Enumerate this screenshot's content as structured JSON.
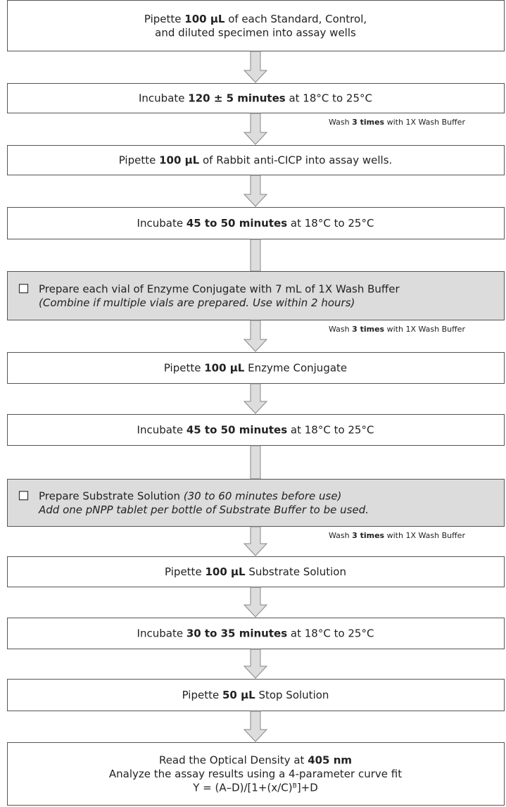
{
  "steps": [
    {
      "lines": [
        [
          {
            "text": "Pipette "
          },
          {
            "text": "100 µL",
            "bold": true
          },
          {
            "text": " of each Standard, Control,"
          }
        ],
        [
          {
            "text": "and diluted specimen into assay wells"
          }
        ]
      ]
    },
    {
      "lines": [
        [
          {
            "text": "Incubate "
          },
          {
            "text": "120 ± 5 minutes",
            "bold": true
          },
          {
            "text": " at 18°C to 25°C"
          }
        ]
      ],
      "wash_note": [
        {
          "text": "Wash "
        },
        {
          "text": "3 times",
          "bold": true
        },
        {
          "text": " with 1X Wash Buffer"
        }
      ]
    },
    {
      "lines": [
        [
          {
            "text": "Pipette "
          },
          {
            "text": "100 µL",
            "bold": true
          },
          {
            "text": " of Rabbit anti-CICP into assay wells."
          }
        ]
      ]
    },
    {
      "lines": [
        [
          {
            "text": "Incubate "
          },
          {
            "text": "45 to 50 minutes",
            "bold": true
          },
          {
            "text": " at 18°C to 25°C"
          }
        ]
      ]
    },
    {
      "shaded": true,
      "checkbox": true,
      "lines": [
        [
          {
            "text": "Prepare each vial of Enzyme Conjugate with 7 mL of 1X Wash Buffer"
          }
        ],
        [
          {
            "text": "(Combine if multiple vials are prepared. Use within 2 hours)",
            "italic": true
          }
        ]
      ],
      "wash_note": [
        {
          "text": "Wash "
        },
        {
          "text": "3 times",
          "bold": true
        },
        {
          "text": " with 1X Wash Buffer"
        }
      ]
    },
    {
      "lines": [
        [
          {
            "text": "Pipette "
          },
          {
            "text": "100 µL",
            "bold": true
          },
          {
            "text": " Enzyme Conjugate"
          }
        ]
      ]
    },
    {
      "lines": [
        [
          {
            "text": "Incubate "
          },
          {
            "text": "45 to 50 minutes",
            "bold": true
          },
          {
            "text": " at 18°C to 25°C"
          }
        ]
      ]
    },
    {
      "shaded": true,
      "checkbox": true,
      "lines": [
        [
          {
            "text": "Prepare Substrate Solution "
          },
          {
            "text": "(30 to 60 minutes before use)",
            "italic": true
          }
        ],
        [
          {
            "text": "Add one pNPP tablet per bottle of Substrate Buffer to be used.",
            "italic": true
          }
        ]
      ],
      "wash_note": [
        {
          "text": "Wash "
        },
        {
          "text": "3 times",
          "bold": true
        },
        {
          "text": " with 1X Wash Buffer"
        }
      ]
    },
    {
      "lines": [
        [
          {
            "text": "Pipette "
          },
          {
            "text": "100 µL",
            "bold": true
          },
          {
            "text": " Substrate Solution"
          }
        ]
      ]
    },
    {
      "lines": [
        [
          {
            "text": "Incubate "
          },
          {
            "text": "30 to 35 minutes",
            "bold": true
          },
          {
            "text": " at 18°C to 25°C"
          }
        ]
      ]
    },
    {
      "lines": [
        [
          {
            "text": "Pipette "
          },
          {
            "text": "50 µL",
            "bold": true
          },
          {
            "text": " Stop Solution"
          }
        ]
      ]
    },
    {
      "lines": [
        [
          {
            "text": "Read the Optical Density at "
          },
          {
            "text": "405 nm",
            "bold": true
          }
        ],
        [
          {
            "text": "Analyze the assay results using a 4-parameter curve fit"
          }
        ],
        [
          {
            "text": "Y = (A–D)/[1+(x/C)"
          },
          {
            "text": "B",
            "superscript": true
          },
          {
            "text": "]+D"
          }
        ]
      ]
    }
  ]
}
